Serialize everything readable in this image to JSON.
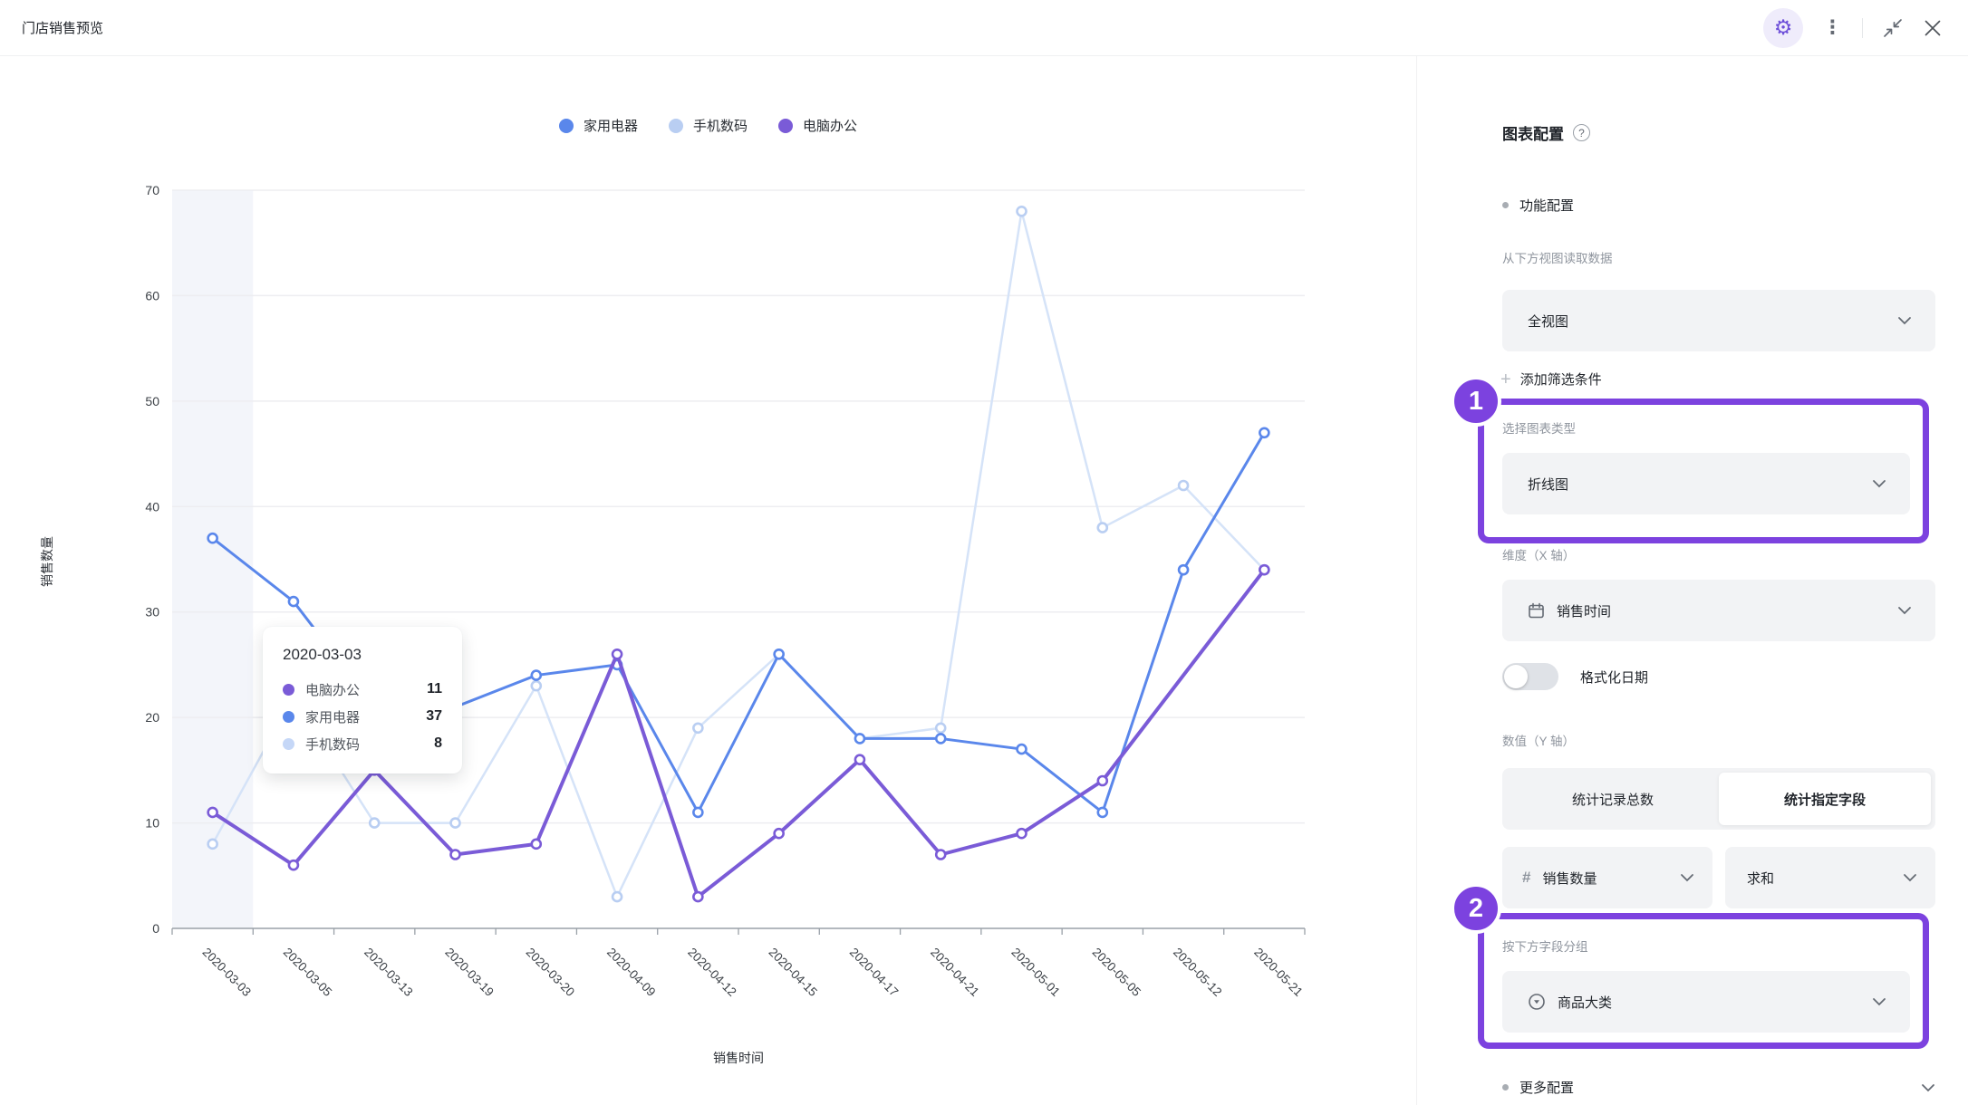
{
  "window": {
    "title": "门店销售预览"
  },
  "panel": {
    "title": "图表配置",
    "function_section": "功能配置",
    "read_from_view_label": "从下方视图读取数据",
    "view_select": "全视图",
    "add_filter": "添加筛选条件",
    "chart_type_label": "选择图表类型",
    "chart_type_select": "折线图",
    "dimension_label": "维度（X 轴）",
    "dimension_select": "销售时间",
    "format_date_label": "格式化日期",
    "value_axis_label": "数值（Y 轴）",
    "tab_record_count": "统计记录总数",
    "tab_specified_field": "统计指定字段",
    "field_select": "销售数量",
    "aggregation_select": "求和",
    "group_label": "按下方字段分组",
    "group_select": "商品大类",
    "more_config": "更多配置",
    "annotation_1": "1",
    "annotation_2": "2",
    "annotation_color": "#7c42df"
  },
  "chart_data": {
    "type": "line",
    "categories": [
      "2020-03-03",
      "2020-03-05",
      "2020-03-13",
      "2020-03-19",
      "2020-03-20",
      "2020-04-09",
      "2020-04-12",
      "2020-04-15",
      "2020-04-17",
      "2020-04-21",
      "2020-05-01",
      "2020-05-05",
      "2020-05-12",
      "2020-05-21"
    ],
    "series": [
      {
        "name": "家用电器",
        "color": "#5a87eb",
        "marker": "#5a87eb",
        "width": 3,
        "values": [
          37,
          31,
          21,
          21,
          24,
          25,
          11,
          26,
          18,
          18,
          17,
          11,
          34,
          47
        ]
      },
      {
        "name": "手机数码",
        "color": "#d5e3f8",
        "marker": "#b9cef2",
        "width": 2.5,
        "values": [
          8,
          22,
          10,
          10,
          23,
          3,
          19,
          26,
          18,
          19,
          68,
          38,
          42,
          34
        ]
      },
      {
        "name": "电脑办公",
        "color": "#7a5bd7",
        "marker": "#7a5bd7",
        "width": 4,
        "values": [
          11,
          6,
          15,
          7,
          8,
          26,
          3,
          9,
          16,
          7,
          9,
          14,
          null,
          34
        ]
      }
    ],
    "xlabel": "销售时间",
    "ylabel": "销售数量",
    "ylim": [
      0,
      70
    ],
    "yticks": [
      0,
      10,
      20,
      30,
      40,
      50,
      60,
      70
    ],
    "grid": "horizontal",
    "legend_position": "top",
    "highlight_index": 0
  },
  "tooltip": {
    "title": "2020-03-03",
    "rows": [
      {
        "name": "电脑办公",
        "value": "11",
        "color": "#7a5bd7"
      },
      {
        "name": "家用电器",
        "value": "37",
        "color": "#5a87eb"
      },
      {
        "name": "手机数码",
        "value": "8",
        "color": "#c5d7f7"
      }
    ]
  }
}
